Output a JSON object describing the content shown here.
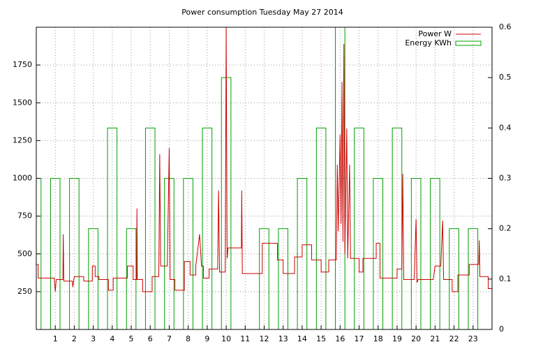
{
  "chart_data": {
    "type": "line",
    "title": "Power consumption Tuesday May 27 2014",
    "xlim": [
      0,
      24
    ],
    "xticks": [
      1,
      2,
      3,
      4,
      5,
      6,
      7,
      8,
      9,
      10,
      11,
      12,
      13,
      14,
      15,
      16,
      17,
      18,
      19,
      20,
      21,
      22,
      23
    ],
    "ylim": [
      0,
      2000
    ],
    "yticks": [
      250,
      500,
      750,
      1000,
      1250,
      1500,
      1750
    ],
    "y2lim": [
      0,
      0.6
    ],
    "y2ticks": [
      0,
      0.1,
      0.2,
      0.3,
      0.4,
      0.5,
      0.6
    ],
    "grid": true,
    "legend": "top-right",
    "series": [
      {
        "name": "Power W",
        "color": "#cc0000",
        "x": [
          0,
          0.1,
          0.1,
          0.95,
          0.95,
          1.0,
          1.05,
          1.4,
          1.42,
          1.45,
          1.9,
          1.92,
          2.0,
          2.5,
          2.5,
          2.95,
          2.95,
          3.1,
          3.1,
          3.3,
          3.3,
          3.8,
          3.8,
          4.05,
          4.05,
          4.8,
          4.8,
          5.1,
          5.1,
          5.28,
          5.3,
          5.32,
          5.6,
          5.6,
          6.1,
          6.1,
          6.45,
          6.5,
          6.55,
          6.9,
          7.0,
          7.05,
          7.3,
          7.3,
          7.8,
          7.8,
          8.1,
          8.1,
          8.4,
          8.4,
          8.6,
          8.7,
          8.8,
          8.8,
          9.1,
          9.1,
          9.55,
          9.6,
          9.65,
          9.95,
          10.0,
          10.05,
          10.1,
          10.8,
          10.82,
          10.85,
          11.9,
          11.9,
          12.7,
          12.7,
          13.0,
          13.0,
          13.6,
          13.6,
          14.0,
          14.0,
          14.5,
          14.5,
          15.0,
          15.0,
          15.4,
          15.4,
          15.8,
          15.85,
          15.9,
          16.0,
          16.05,
          16.1,
          16.15,
          16.2,
          16.25,
          16.35,
          16.4,
          16.5,
          16.55,
          17.0,
          17.0,
          17.2,
          17.2,
          17.9,
          17.9,
          18.1,
          18.1,
          19.0,
          19.0,
          19.25,
          19.3,
          19.35,
          19.9,
          20.0,
          20.05,
          20.1,
          20.9,
          21.0,
          21.3,
          21.4,
          21.45,
          21.9,
          21.9,
          22.2,
          22.2,
          22.8,
          22.8,
          23.3,
          23.33,
          23.36,
          23.8,
          23.8,
          24
        ],
        "values": [
          430,
          430,
          340,
          340,
          330,
          250,
          330,
          330,
          630,
          320,
          320,
          280,
          350,
          350,
          320,
          320,
          420,
          420,
          350,
          350,
          330,
          330,
          260,
          260,
          340,
          340,
          420,
          420,
          330,
          330,
          800,
          330,
          330,
          250,
          250,
          350,
          350,
          1160,
          420,
          420,
          1200,
          330,
          330,
          260,
          260,
          450,
          450,
          360,
          360,
          420,
          630,
          420,
          420,
          340,
          340,
          400,
          400,
          920,
          380,
          380,
          2000,
          470,
          540,
          540,
          920,
          370,
          370,
          570,
          570,
          460,
          460,
          370,
          370,
          480,
          480,
          560,
          560,
          460,
          460,
          380,
          380,
          460,
          460,
          1090,
          650,
          1290,
          700,
          1640,
          580,
          1890,
          500,
          1330,
          470,
          1090,
          470,
          470,
          380,
          380,
          470,
          470,
          570,
          570,
          340,
          340,
          400,
          400,
          1030,
          330,
          330,
          730,
          310,
          330,
          330,
          420,
          420,
          720,
          330,
          330,
          250,
          250,
          360,
          360,
          430,
          430,
          590,
          350,
          350,
          270,
          270
        ]
      },
      {
        "name": "Energy KWh",
        "color": "#00a000",
        "axis": "y2",
        "x": [
          0,
          1,
          2,
          3,
          4,
          5,
          6,
          7,
          8,
          9,
          10,
          11,
          12,
          13,
          14,
          15,
          16,
          17,
          18,
          19,
          20,
          21,
          22,
          23
        ],
        "values": [
          0.3,
          0.3,
          0.3,
          0.2,
          0.4,
          0.2,
          0.4,
          0.3,
          0.3,
          0.4,
          0.5,
          0,
          0.2,
          0.2,
          0.3,
          0.4,
          0.6,
          0.4,
          0.3,
          0.4,
          0.3,
          0.3,
          0.2,
          0.2
        ]
      }
    ]
  }
}
